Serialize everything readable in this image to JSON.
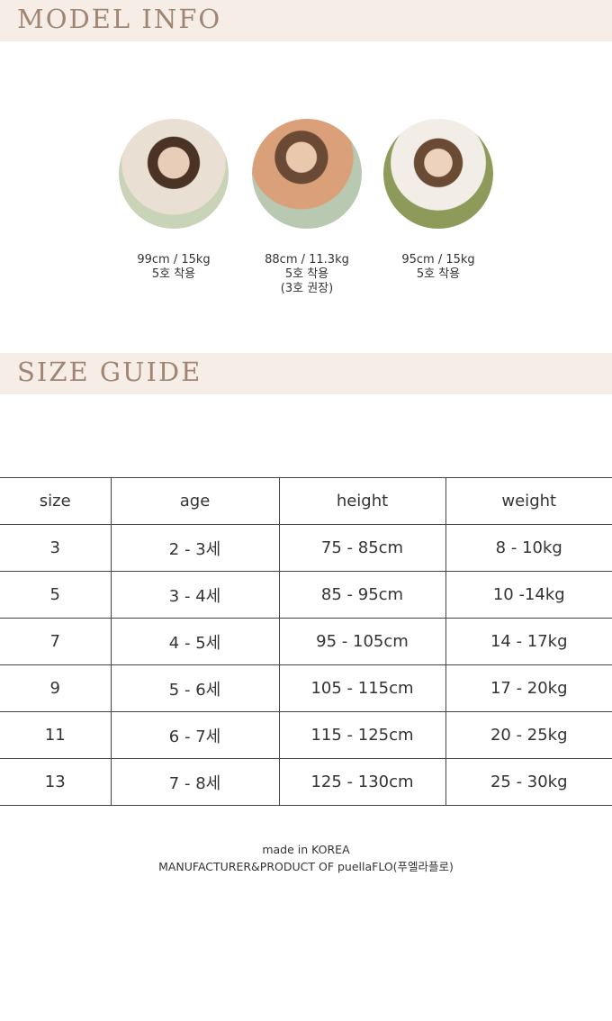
{
  "model_info": {
    "title": "MODEL INFO",
    "models": [
      {
        "size": "99cm / 15kg",
        "worn": "5호 착용",
        "note": ""
      },
      {
        "size": "88cm / 11.3kg",
        "worn": "5호 착용",
        "note": "(3호 권장)"
      },
      {
        "size": "95cm / 15kg",
        "worn": "5호 착용",
        "note": ""
      }
    ]
  },
  "size_guide": {
    "title": "SIZE GUIDE",
    "headers": [
      "size",
      "age",
      "height",
      "weight"
    ],
    "rows": [
      [
        "3",
        "2 - 3세",
        "75 - 85cm",
        "8 - 10kg"
      ],
      [
        "5",
        "3 - 4세",
        "85 - 95cm",
        "10 -14kg"
      ],
      [
        "7",
        "4 - 5세",
        "95 - 105cm",
        "14 - 17kg"
      ],
      [
        "9",
        "5 - 6세",
        "105 - 115cm",
        "17 - 20kg"
      ],
      [
        "11",
        "6 - 7세",
        "115 - 125cm",
        "20 - 25kg"
      ],
      [
        "13",
        "7 - 8세",
        "125 - 130cm",
        "25 - 30kg"
      ]
    ]
  },
  "footer": {
    "line1": "made in KOREA",
    "line2": "MANUFACTURER&PRODUCT OF puellaFLO(푸엘라플로)"
  }
}
